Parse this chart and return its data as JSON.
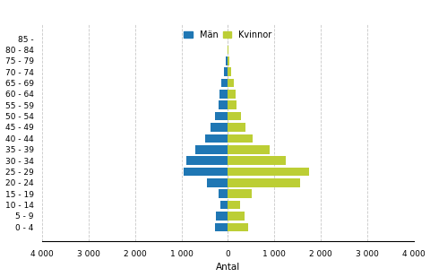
{
  "age_groups": [
    "0 - 4",
    "5 - 9",
    "10 - 14",
    "15 - 19",
    "20 - 24",
    "25 - 29",
    "30 - 34",
    "35 - 39",
    "40 - 44",
    "45 - 49",
    "50 - 54",
    "55 - 59",
    "60 - 64",
    "65 - 69",
    "70 - 74",
    "75 - 79",
    "80 - 84",
    "85 -"
  ],
  "man_values": [
    280,
    250,
    170,
    200,
    450,
    950,
    900,
    700,
    500,
    380,
    280,
    200,
    180,
    150,
    80,
    50,
    5,
    0
  ],
  "kvinnor_values": [
    430,
    350,
    270,
    520,
    1550,
    1750,
    1250,
    900,
    530,
    380,
    280,
    180,
    160,
    120,
    60,
    30,
    5,
    0
  ],
  "man_color": "#1f77b4",
  "kvinnor_color": "#bcce35",
  "xlabel": "Antal",
  "xlim": 4000,
  "background_color": "#ffffff",
  "grid_color": "#c8c8c8",
  "legend_man": "Män",
  "legend_kvinnor": "Kvinnor",
  "tick_positions": [
    -4000,
    -3000,
    -2000,
    -1000,
    0,
    1000,
    2000,
    3000,
    4000
  ],
  "tick_labels": [
    "4 000",
    "3 000",
    "2 000",
    "1 000",
    "0",
    "1 000",
    "2 000",
    "3 000",
    "4 000"
  ]
}
